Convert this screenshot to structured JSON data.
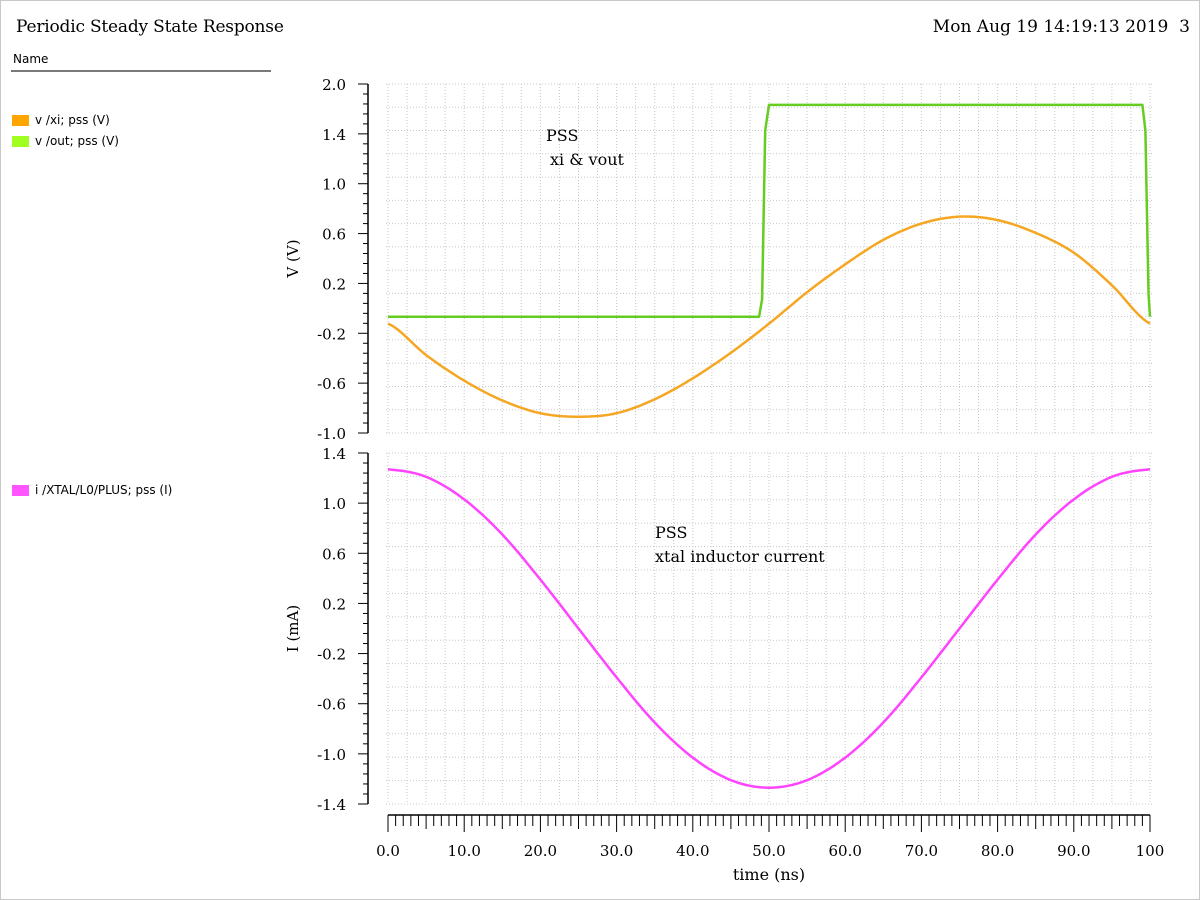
{
  "header": {
    "title": "Periodic Steady State Response",
    "date": "Mon Aug 19 14:19:13 2019",
    "page": "3"
  },
  "legend": {
    "header": "Name",
    "items": [
      {
        "label": "v /xi; pss (V)",
        "color": "#ffa500"
      },
      {
        "label": "v /out; pss (V)",
        "color": "#a0ff20"
      },
      {
        "label": "i /XTAL/L0/PLUS; pss (I)",
        "color": "#ff55ff"
      }
    ]
  },
  "chart_data": [
    {
      "type": "line",
      "ylabel": "V (V)",
      "ylim": [
        -1.0,
        2.0
      ],
      "yticks": [
        "2.0",
        "1.4",
        "1.0",
        "0.6",
        "0.2",
        "-0.2",
        "-0.6",
        "-1.0"
      ],
      "xlim": [
        0,
        100
      ],
      "grid": true,
      "annotation": [
        "PSS",
        "xi & vout"
      ],
      "series": [
        {
          "name": "v /xi; pss (V)",
          "color": "#f5a623",
          "x": [
            0,
            5,
            10,
            15,
            20,
            25,
            30,
            35,
            40,
            45,
            50,
            55,
            60,
            65,
            70,
            75,
            80,
            85,
            90,
            95,
            100
          ],
          "y": [
            -0.06,
            -0.33,
            -0.55,
            -0.72,
            -0.83,
            -0.86,
            -0.83,
            -0.71,
            -0.53,
            -0.31,
            -0.06,
            0.21,
            0.45,
            0.66,
            0.8,
            0.86,
            0.83,
            0.72,
            0.55,
            0.27,
            -0.06
          ]
        },
        {
          "name": "v /out; pss (V)",
          "color": "#66cc22",
          "x": [
            0,
            48.7,
            49.1,
            49.5,
            50.0,
            99.0,
            99.4,
            99.8,
            100
          ],
          "y": [
            0.0,
            0.0,
            0.15,
            1.6,
            1.82,
            1.82,
            1.6,
            0.2,
            0.0
          ]
        }
      ]
    },
    {
      "type": "line",
      "ylabel": "I (mA)",
      "ylim": [
        -1.4,
        1.4
      ],
      "yticks": [
        "1.4",
        "1.0",
        "0.6",
        "0.2",
        "-0.2",
        "-0.6",
        "-1.0",
        "-1.4"
      ],
      "xlim": [
        0,
        100
      ],
      "xlabel": "time (ns)",
      "xticks": [
        "0.0",
        "10.0",
        "20.0",
        "30.0",
        "40.0",
        "50.0",
        "60.0",
        "70.0",
        "80.0",
        "90.0",
        "100"
      ],
      "grid": true,
      "annotation": [
        "PSS",
        "xtal inductor current"
      ],
      "series": [
        {
          "name": "i /XTAL/L0/PLUS; pss (I)",
          "color": "#ff44ff",
          "x": [
            0,
            5,
            10,
            15,
            20,
            25,
            30,
            35,
            40,
            45,
            50,
            55,
            60,
            65,
            70,
            75,
            80,
            85,
            90,
            95,
            100
          ],
          "y": [
            1.27,
            1.21,
            1.03,
            0.75,
            0.39,
            0.0,
            -0.39,
            -0.75,
            -1.03,
            -1.21,
            -1.27,
            -1.21,
            -1.03,
            -0.75,
            -0.39,
            0.0,
            0.39,
            0.75,
            1.03,
            1.21,
            1.27
          ]
        }
      ]
    }
  ]
}
